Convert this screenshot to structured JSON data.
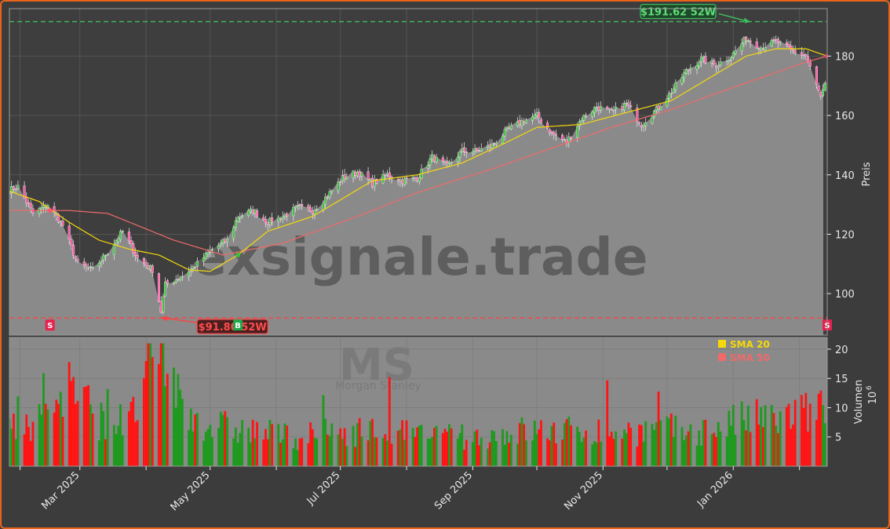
{
  "chart_data": {
    "type": "candlestick",
    "price_axis": {
      "label": "Preis",
      "ticks": [
        100,
        120,
        140,
        160,
        180
      ],
      "ylim": [
        86,
        196
      ],
      "fill_last_value": 171
    },
    "volume_axis": {
      "label": "Volumen",
      "multiplier": "10",
      "multiplier_exp": "6",
      "ticks": [
        5,
        10,
        15,
        20
      ],
      "ylim": [
        0,
        22
      ]
    },
    "x_axis": {
      "start": "2025-01-27",
      "end": "2026-02-14",
      "ticks": [
        {
          "date": "2025-03-01",
          "label": "Mar 2025"
        },
        {
          "date": "2025-05-01",
          "label": "May 2025"
        },
        {
          "date": "2025-07-01",
          "label": "Jul 2025"
        },
        {
          "date": "2025-09-01",
          "label": "Sep 2025"
        },
        {
          "date": "2025-11-01",
          "label": "Nov 2025"
        },
        {
          "date": "2026-01-01",
          "label": "Jan 2026"
        }
      ]
    },
    "price_keypoints": [
      [
        "2025-01-27",
        135
      ],
      [
        "2025-01-31",
        136
      ],
      [
        "2025-02-07",
        127
      ],
      [
        "2025-02-14",
        130
      ],
      [
        "2025-02-21",
        123
      ],
      [
        "2025-02-28",
        110
      ],
      [
        "2025-03-07",
        108
      ],
      [
        "2025-03-14",
        114
      ],
      [
        "2025-03-21",
        121
      ],
      [
        "2025-03-28",
        112
      ],
      [
        "2025-04-04",
        108
      ],
      [
        "2025-04-08",
        94
      ],
      [
        "2025-04-10",
        103
      ],
      [
        "2025-04-18",
        106
      ],
      [
        "2025-04-25",
        110
      ],
      [
        "2025-05-02",
        115
      ],
      [
        "2025-05-09",
        118
      ],
      [
        "2025-05-14",
        126
      ],
      [
        "2025-05-21",
        128
      ],
      [
        "2025-05-28",
        124
      ],
      [
        "2025-06-04",
        126
      ],
      [
        "2025-06-11",
        129
      ],
      [
        "2025-06-18",
        128
      ],
      [
        "2025-06-25",
        133
      ],
      [
        "2025-07-02",
        139
      ],
      [
        "2025-07-09",
        141
      ],
      [
        "2025-07-16",
        137
      ],
      [
        "2025-07-23",
        140
      ],
      [
        "2025-07-30",
        138
      ],
      [
        "2025-08-06",
        139
      ],
      [
        "2025-08-13",
        146
      ],
      [
        "2025-08-20",
        143
      ],
      [
        "2025-08-27",
        148
      ],
      [
        "2025-09-03",
        148
      ],
      [
        "2025-09-10",
        150
      ],
      [
        "2025-09-17",
        155
      ],
      [
        "2025-09-24",
        158
      ],
      [
        "2025-10-01",
        160
      ],
      [
        "2025-10-08",
        154
      ],
      [
        "2025-10-15",
        151
      ],
      [
        "2025-10-22",
        159
      ],
      [
        "2025-10-29",
        163
      ],
      [
        "2025-11-05",
        161
      ],
      [
        "2025-11-12",
        164
      ],
      [
        "2025-11-19",
        157
      ],
      [
        "2025-11-26",
        162
      ],
      [
        "2025-12-03",
        168
      ],
      [
        "2025-12-10",
        175
      ],
      [
        "2025-12-17",
        179
      ],
      [
        "2025-12-24",
        177
      ],
      [
        "2025-12-31",
        180
      ],
      [
        "2026-01-07",
        186
      ],
      [
        "2026-01-14",
        183
      ],
      [
        "2026-01-21",
        185
      ],
      [
        "2026-01-28",
        182
      ],
      [
        "2026-02-04",
        180
      ],
      [
        "2026-02-11",
        166
      ],
      [
        "2026-02-14",
        172
      ]
    ],
    "sma20_keypoints": [
      [
        "2025-01-27",
        134.5
      ],
      [
        "2025-02-10",
        131
      ],
      [
        "2025-02-24",
        124
      ],
      [
        "2025-03-10",
        118
      ],
      [
        "2025-03-24",
        115
      ],
      [
        "2025-04-07",
        113
      ],
      [
        "2025-04-21",
        108
      ],
      [
        "2025-05-01",
        107.5
      ],
      [
        "2025-05-14",
        113
      ],
      [
        "2025-05-28",
        121
      ],
      [
        "2025-06-18",
        126
      ],
      [
        "2025-07-02",
        132
      ],
      [
        "2025-07-16",
        138
      ],
      [
        "2025-08-06",
        140
      ],
      [
        "2025-08-27",
        144
      ],
      [
        "2025-09-17",
        151
      ],
      [
        "2025-10-01",
        156
      ],
      [
        "2025-10-22",
        157
      ],
      [
        "2025-11-12",
        161
      ],
      [
        "2025-12-03",
        165
      ],
      [
        "2025-12-24",
        174
      ],
      [
        "2026-01-07",
        180
      ],
      [
        "2026-01-21",
        182.5
      ],
      [
        "2026-02-04",
        182.5
      ],
      [
        "2026-02-14",
        180
      ]
    ],
    "sma50_keypoints": [
      [
        "2025-01-27",
        128
      ],
      [
        "2025-02-24",
        128
      ],
      [
        "2025-03-14",
        127
      ],
      [
        "2025-04-14",
        118
      ],
      [
        "2025-05-07",
        113
      ],
      [
        "2025-06-04",
        117
      ],
      [
        "2025-07-09",
        126
      ],
      [
        "2025-08-06",
        134
      ],
      [
        "2025-09-10",
        142
      ],
      [
        "2025-10-08",
        149
      ],
      [
        "2025-11-05",
        156
      ],
      [
        "2025-12-03",
        162
      ],
      [
        "2026-01-07",
        171
      ],
      [
        "2026-02-04",
        178
      ],
      [
        "2026-02-14",
        180
      ]
    ],
    "high_52w": {
      "date": "2026-01-09",
      "value": 191.62,
      "label": "$191.62 52W"
    },
    "low_52w": {
      "date": "2025-04-08",
      "value": 91.8,
      "label": "$91.80 52W"
    },
    "signals": [
      {
        "date": "2025-02-15",
        "type": "S"
      },
      {
        "date": "2025-05-14",
        "type": "B"
      },
      {
        "date": "2026-02-14",
        "type": "S"
      }
    ],
    "legend": [
      {
        "name": "SMA 20",
        "color": "#f5d90a"
      },
      {
        "name": "SMA 50",
        "color": "#f06a6a"
      }
    ],
    "watermark": {
      "site": "exsignale.trade",
      "ticker": "MS",
      "company": "Morgan Stanley"
    },
    "volume_keypoints": [
      [
        "2025-01-27",
        6
      ],
      [
        "2025-02-10",
        8
      ],
      [
        "2025-02-24",
        14
      ],
      [
        "2025-03-10",
        8
      ],
      [
        "2025-03-24",
        7
      ],
      [
        "2025-04-04",
        17
      ],
      [
        "2025-04-09",
        20
      ],
      [
        "2025-04-18",
        10
      ],
      [
        "2025-05-01",
        7
      ],
      [
        "2025-05-21",
        6
      ],
      [
        "2025-06-11",
        5
      ],
      [
        "2025-07-02",
        6
      ],
      [
        "2025-07-23",
        6
      ],
      [
        "2025-08-13",
        5
      ],
      [
        "2025-09-03",
        5
      ],
      [
        "2025-09-24",
        6
      ],
      [
        "2025-10-15",
        6
      ],
      [
        "2025-11-05",
        6
      ],
      [
        "2025-11-26",
        6
      ],
      [
        "2025-12-17",
        6
      ],
      [
        "2026-01-07",
        8
      ],
      [
        "2026-01-21",
        8
      ],
      [
        "2026-02-04",
        9
      ],
      [
        "2026-02-14",
        10
      ]
    ]
  },
  "colors": {
    "up": "#3fbf3f",
    "down": "#ff2a2a",
    "vol_up": "#1e9a1e",
    "vol_down": "#ff1414",
    "fill": "#8a8a8a",
    "high_line": "#3fbf5f",
    "low_line": "#ff4040"
  }
}
